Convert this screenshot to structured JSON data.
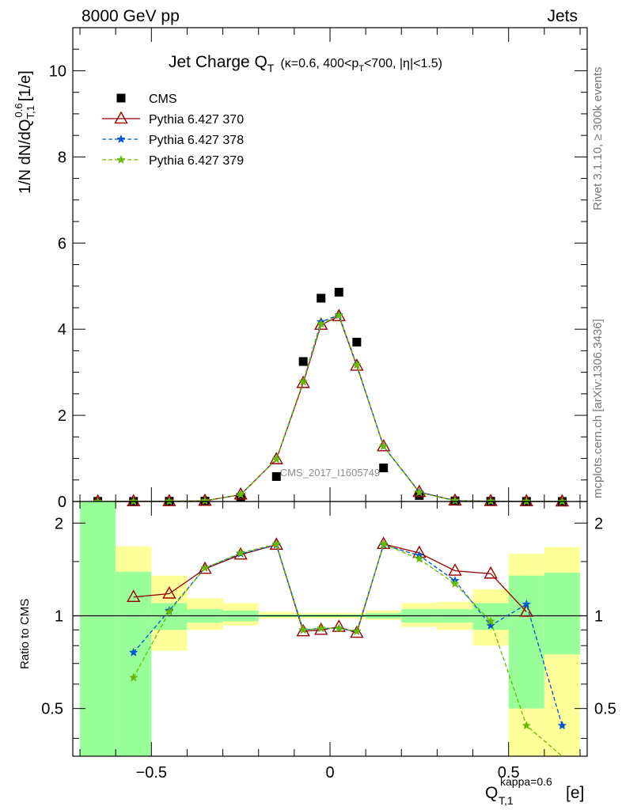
{
  "header": {
    "left": "8000 GeV pp",
    "right": "Jets",
    "side_top": "Rivet 3.1.10, ≥ 300k events",
    "side_bottom": "mcplots.cern.ch [arXiv:1306.3436]"
  },
  "chart_data": [
    {
      "type": "scatter",
      "title_main": "Jet Charge Q",
      "title_sub": "T",
      "title_detail": "(κ=0.6, 400<p",
      "title_detail_sub": "T",
      "title_detail_end": "<700, |η|<1.5)",
      "ylabel": "1/N dN/dQ",
      "ylabel_sup": "0.6",
      "ylabel_sub": "T,1",
      "ylabel_unit": "[1/e]",
      "watermark": "CMS_2017_I1605749",
      "xlim": [
        -0.72,
        0.72
      ],
      "ylim": [
        0,
        11
      ],
      "yticks": [
        "0",
        "2",
        "4",
        "6",
        "8",
        "10"
      ],
      "legend_position": "top-left",
      "x": [
        -0.65,
        -0.55,
        -0.45,
        -0.35,
        -0.25,
        -0.15,
        -0.075,
        -0.025,
        0.025,
        0.075,
        0.15,
        0.25,
        0.35,
        0.45,
        0.55,
        0.65
      ],
      "series": [
        {
          "name": "CMS",
          "color": "#000000",
          "marker": "square",
          "values": [
            0.003,
            0.003,
            0.005,
            0.01,
            0.1,
            0.58,
            3.25,
            4.72,
            4.86,
            3.7,
            0.78,
            0.14,
            0.015,
            0.006,
            0.003,
            0.001
          ]
        },
        {
          "name": "Pythia 6.427 370",
          "color": "#990000",
          "marker": "triangle",
          "values": [
            0.0,
            0.003,
            0.006,
            0.014,
            0.16,
            0.98,
            2.75,
            4.1,
            4.3,
            3.15,
            1.28,
            0.22,
            0.02,
            0.008,
            0.003,
            0.0
          ]
        },
        {
          "name": "Pythia 6.427 378",
          "color": "#0055cc",
          "marker": "star",
          "values": [
            0.0,
            0.002,
            0.005,
            0.014,
            0.16,
            0.98,
            2.78,
            4.17,
            4.33,
            3.17,
            1.28,
            0.22,
            0.02,
            0.006,
            0.003,
            0.0
          ]
        },
        {
          "name": "Pythia 6.427 379",
          "color": "#66bb00",
          "marker": "star",
          "values": [
            0.0,
            0.002,
            0.005,
            0.014,
            0.16,
            0.98,
            2.78,
            4.12,
            4.32,
            3.17,
            1.28,
            0.21,
            0.019,
            0.006,
            0.002,
            0.0
          ]
        }
      ]
    },
    {
      "type": "line",
      "ylabel": "Ratio to CMS",
      "xlabel": "Q",
      "xlabel_sub": "T,1",
      "xlabel_sup": "kappa=0.6",
      "xlabel_unit": "[e]",
      "xlim": [
        -0.72,
        0.72
      ],
      "ylim": [
        0.35,
        2.35
      ],
      "xticks": [
        "−0.5",
        "0",
        "0.5"
      ],
      "yticks": [
        "0.5",
        "1",
        "2"
      ],
      "bands": {
        "edges": [
          -0.7,
          -0.6,
          -0.5,
          -0.4,
          -0.3,
          -0.2,
          -0.1,
          -0.05,
          0.0,
          0.05,
          0.1,
          0.2,
          0.3,
          0.4,
          0.5,
          0.6,
          0.7
        ],
        "stat_color": "#99ff99",
        "syst_color": "#ffff99",
        "inner": [
          [
            0.35,
            2.35
          ],
          [
            0.35,
            1.39
          ],
          [
            0.9,
            1.1
          ],
          [
            0.95,
            1.05
          ],
          [
            0.96,
            1.04
          ],
          [
            0.99,
            1.01
          ],
          [
            0.99,
            1.01
          ],
          [
            0.99,
            1.01
          ],
          [
            0.99,
            1.01
          ],
          [
            0.99,
            1.01
          ],
          [
            0.98,
            1.02
          ],
          [
            0.95,
            1.05
          ],
          [
            0.95,
            1.05
          ],
          [
            0.9,
            1.1
          ],
          [
            0.5,
            1.35
          ],
          [
            0.75,
            1.38
          ]
        ],
        "outer": [
          [
            0.35,
            2.35
          ],
          [
            0.35,
            1.68
          ],
          [
            0.77,
            1.35
          ],
          [
            0.9,
            1.14
          ],
          [
            0.93,
            1.1
          ],
          [
            0.98,
            1.03
          ],
          [
            0.98,
            1.02
          ],
          [
            0.98,
            1.02
          ],
          [
            0.98,
            1.02
          ],
          [
            0.98,
            1.02
          ],
          [
            0.97,
            1.04
          ],
          [
            0.92,
            1.1
          ],
          [
            0.9,
            1.11
          ],
          [
            0.8,
            1.22
          ],
          [
            0.35,
            1.59
          ],
          [
            0.35,
            1.67
          ]
        ]
      },
      "x": [
        -0.55,
        -0.45,
        -0.35,
        -0.25,
        -0.15,
        -0.075,
        -0.025,
        0.025,
        0.075,
        0.15,
        0.25,
        0.35,
        0.45,
        0.55,
        0.65
      ],
      "series": [
        {
          "name": "Pythia 6.427 370",
          "color": "#990000",
          "values": [
            1.15,
            1.18,
            1.42,
            1.58,
            1.7,
            0.89,
            0.9,
            0.92,
            0.88,
            1.71,
            1.6,
            1.4,
            1.37,
            1.03,
            null
          ]
        },
        {
          "name": "Pythia 6.427 378",
          "color": "#0055cc",
          "values": [
            0.76,
            1.04,
            1.43,
            1.59,
            1.7,
            0.9,
            0.91,
            0.91,
            0.89,
            1.7,
            1.57,
            1.3,
            0.93,
            1.09,
            0.44
          ]
        },
        {
          "name": "Pythia 6.427 379",
          "color": "#66bb00",
          "values": [
            0.63,
            1.03,
            1.43,
            1.6,
            1.71,
            0.9,
            0.91,
            0.91,
            0.89,
            1.71,
            1.53,
            1.27,
            0.96,
            0.44,
            0.35
          ]
        }
      ]
    }
  ]
}
